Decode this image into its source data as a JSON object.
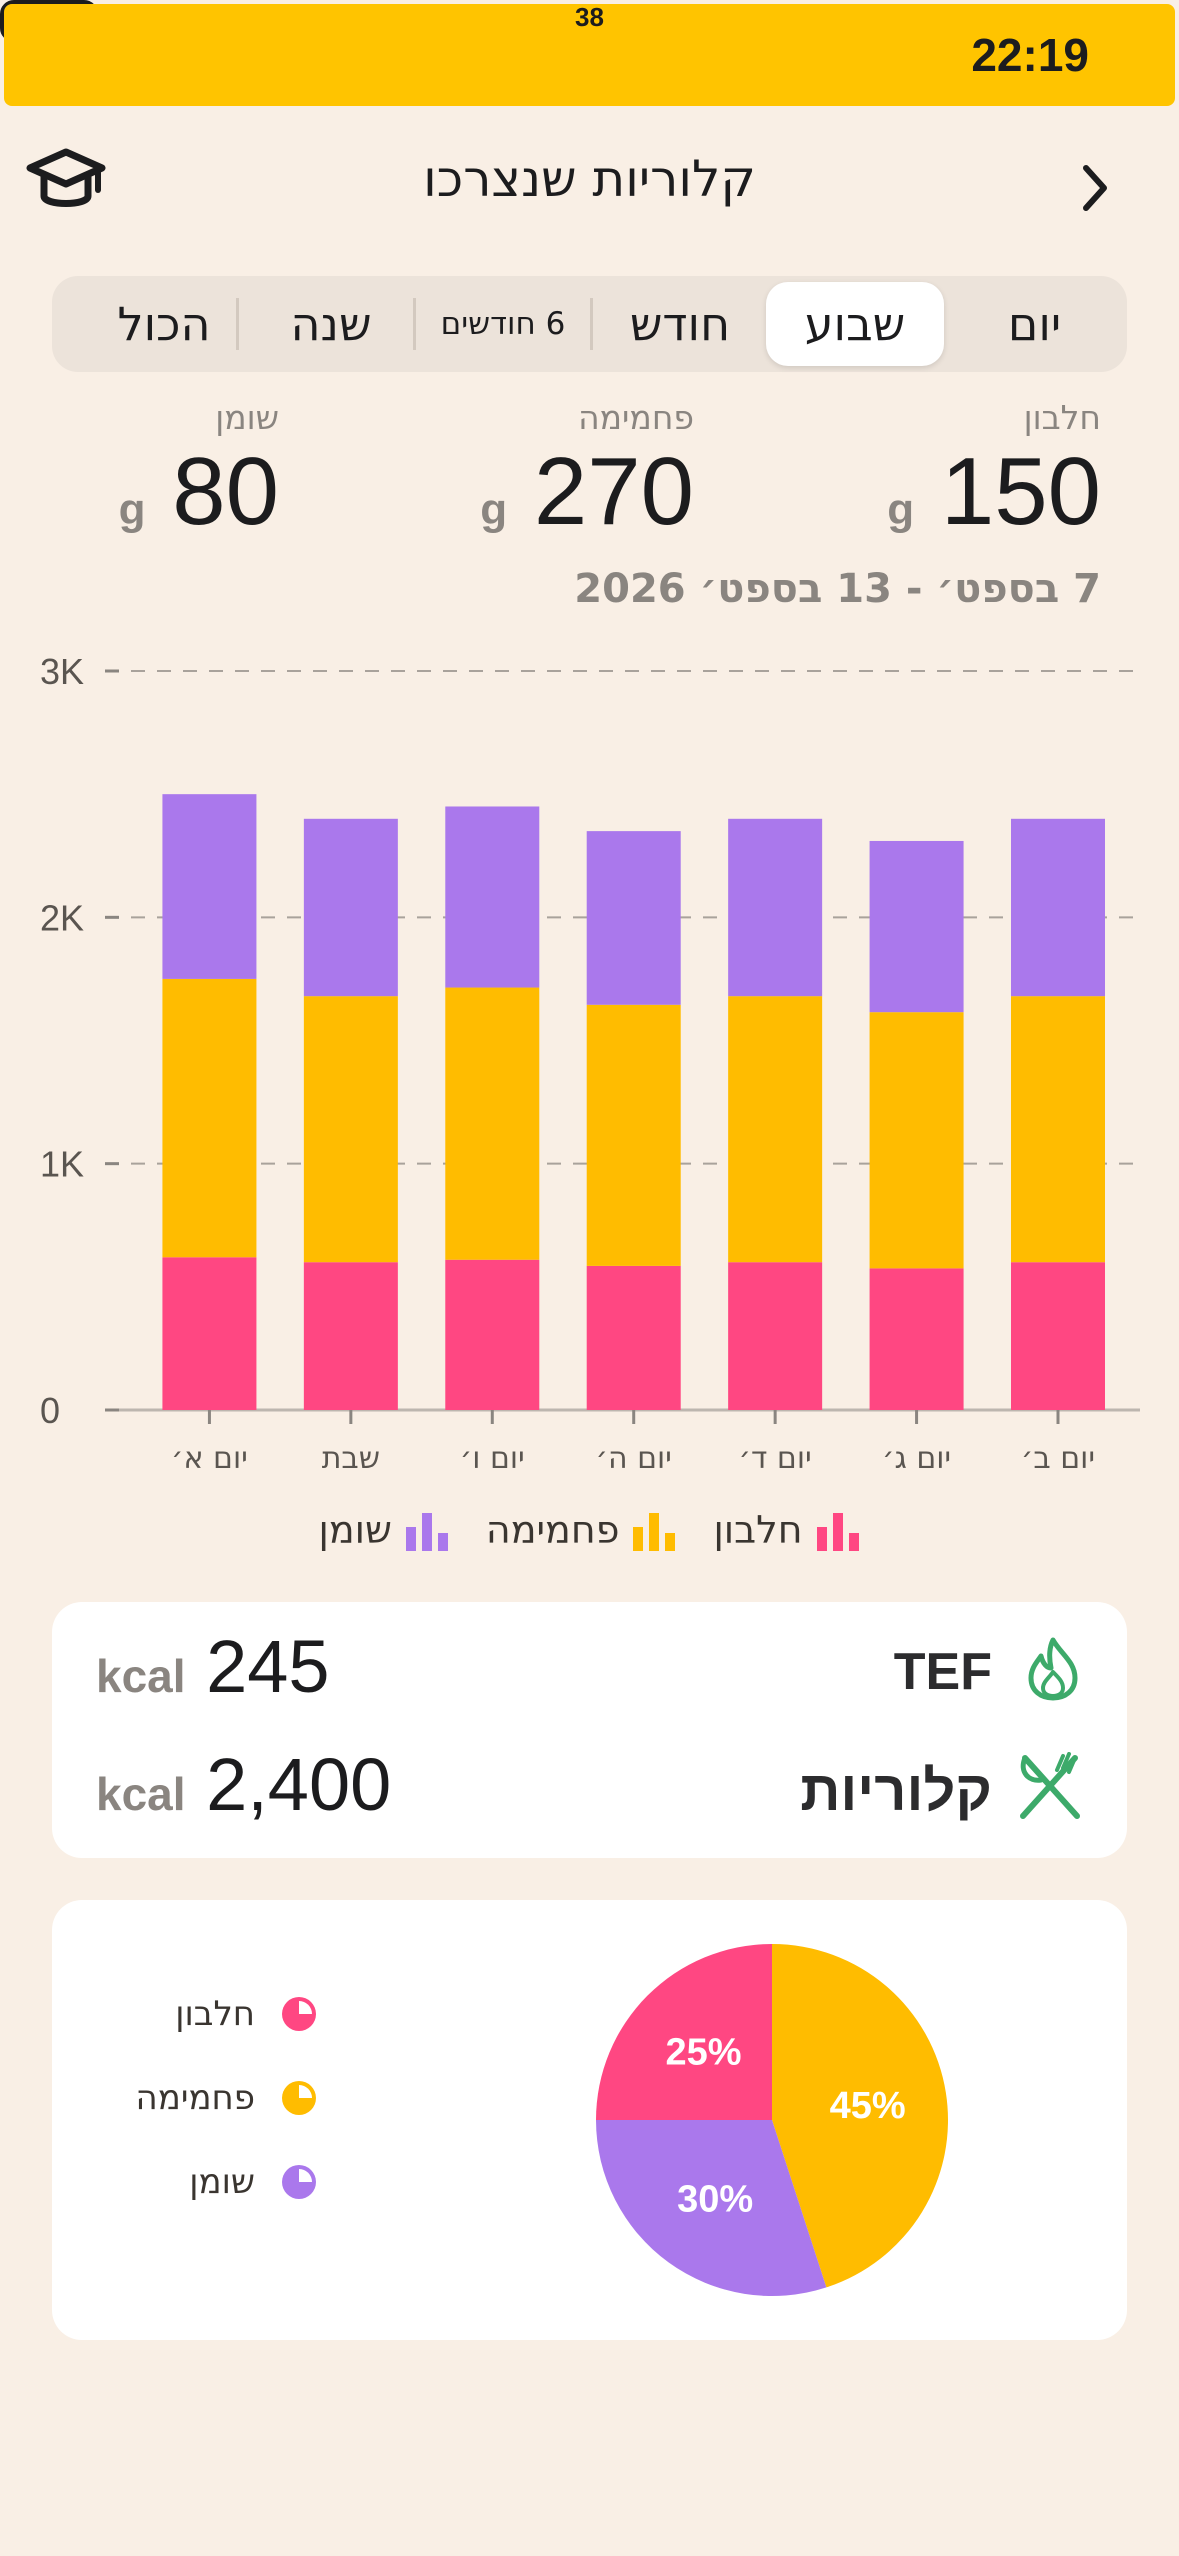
{
  "status_bar": {
    "time": "22:19",
    "battery": "38"
  },
  "header": {
    "title": "קלוריות שנצרכו"
  },
  "tabs": [
    "יום",
    "שבוע",
    "חודש",
    "6 חודשים",
    "שנה",
    "הכול"
  ],
  "active_tab": "שבוע",
  "macros": {
    "protein": {
      "label": "חלבון",
      "value": "150",
      "unit": "g"
    },
    "carbs": {
      "label": "פחמימה",
      "value": "270",
      "unit": "g"
    },
    "fat": {
      "label": "שומן",
      "value": "80",
      "unit": "g"
    }
  },
  "date_range": "7 בספט׳ - 13 בספט׳ 2026",
  "colors": {
    "protein": "#FF4782",
    "carbs": "#FFBC00",
    "fat": "#AA78EC",
    "accent_green": "#3DAA6A",
    "background": "#F9EFE5"
  },
  "chart_data": {
    "type": "bar",
    "stacked": true,
    "categories": [
      "יום ב׳",
      "יום ג׳",
      "יום ד׳",
      "יום ה׳",
      "יום ו׳",
      "שבת",
      "יום א׳"
    ],
    "series": [
      {
        "name": "חלבון",
        "color": "#FF4782",
        "values": [
          600,
          575,
          600,
          585,
          610,
          600,
          620
        ]
      },
      {
        "name": "פחמימה",
        "color": "#FFBC00",
        "values": [
          1080,
          1040,
          1080,
          1060,
          1105,
          1080,
          1130
        ]
      },
      {
        "name": "שומן",
        "color": "#AA78EC",
        "values": [
          720,
          695,
          720,
          705,
          735,
          720,
          750
        ]
      }
    ],
    "yticks": [
      "0",
      "1K",
      "2K",
      "3K"
    ],
    "ylim": [
      0,
      3000
    ],
    "grid": true,
    "legend_position": "bottom"
  },
  "legend": [
    "חלבון",
    "פחמימה",
    "שומן"
  ],
  "summary": {
    "tef": {
      "label": "TEF",
      "value": "245",
      "unit": "kcal",
      "icon": "flame-icon"
    },
    "calories": {
      "label": "קלוריות",
      "value": "2,400",
      "unit": "kcal",
      "icon": "fork-knife-icon"
    }
  },
  "pie": {
    "slices": [
      {
        "name": "חלבון",
        "percent": 25,
        "label": "25%",
        "color": "#FF4782"
      },
      {
        "name": "פחמימה",
        "percent": 45,
        "label": "45%",
        "color": "#FFBC00"
      },
      {
        "name": "שומן",
        "percent": 30,
        "label": "30%",
        "color": "#AA78EC"
      }
    ]
  }
}
